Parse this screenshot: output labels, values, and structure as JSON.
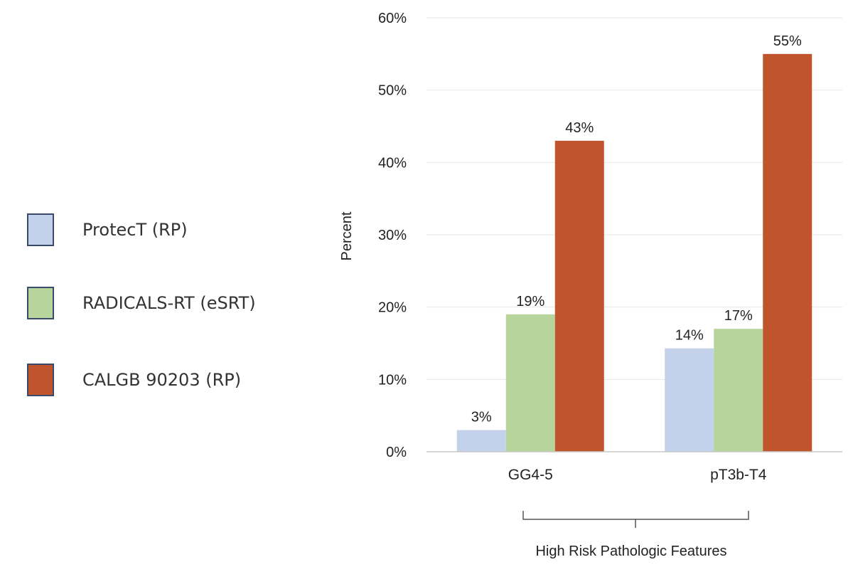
{
  "chart_data": {
    "type": "bar",
    "categories": [
      "GG4-5",
      "pT3b-T4"
    ],
    "series": [
      {
        "name": "ProtecT (RP)",
        "values": [
          3,
          14.3
        ],
        "color": "#c3d1ea",
        "labels": [
          "3%",
          "14%"
        ]
      },
      {
        "name": "RADICALS-RT (eSRT)",
        "values": [
          19,
          17
        ],
        "color": "#b6d49c",
        "labels": [
          "19%",
          "17%"
        ]
      },
      {
        "name": "CALGB 90203 (RP)",
        "values": [
          43,
          55
        ],
        "color": "#c0552d",
        "labels": [
          "43%",
          "55%"
        ]
      }
    ],
    "ylabel": "Percent",
    "xlabel": "High Risk Pathologic Features",
    "ylim": [
      0,
      60
    ],
    "yticks": [
      "0%",
      "10%",
      "20%",
      "30%",
      "40%",
      "50%",
      "60%"
    ],
    "grid": true,
    "legend_position": "left"
  }
}
